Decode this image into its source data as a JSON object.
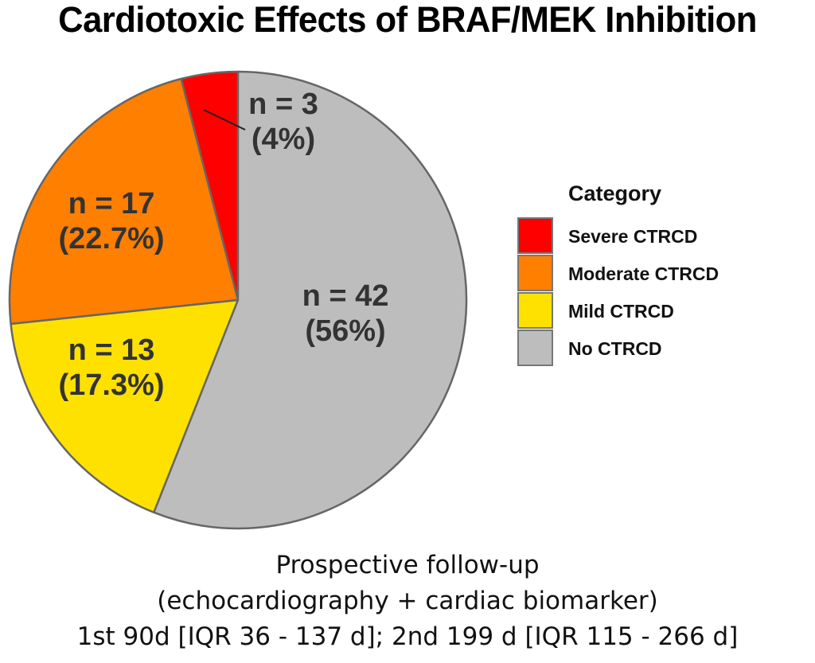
{
  "chart_data": {
    "type": "pie",
    "title": "Cardiotoxic Effects of BRAF/MEK Inhibition",
    "direction": "counter-clockwise from top",
    "slices": [
      {
        "key": "severe",
        "label": "Severe CTRCD",
        "n": 3,
        "percent": 4.0,
        "n_text": "n = 3",
        "pct_text": "(4%)",
        "color": "#ff0000"
      },
      {
        "key": "moderate",
        "label": "Moderate CTRCD",
        "n": 17,
        "percent": 22.7,
        "n_text": "n = 17",
        "pct_text": "(22.7%)",
        "color": "#ff7f00"
      },
      {
        "key": "mild",
        "label": "Mild CTRCD",
        "n": 13,
        "percent": 17.3,
        "n_text": "n = 13",
        "pct_text": "(17.3%)",
        "color": "#ffe100"
      },
      {
        "key": "none",
        "label": "No CTRCD",
        "n": 42,
        "percent": 56.0,
        "n_text": "n = 42",
        "pct_text": "(56%)",
        "color": "#bdbdbd"
      }
    ],
    "legend": {
      "title": "Category",
      "placement": "right",
      "entries": [
        "Severe CTRCD",
        "Moderate CTRCD",
        "Mild CTRCD",
        "No CTRCD"
      ]
    },
    "slice_border_color": "#666666",
    "label_color": "#333333"
  },
  "caption": {
    "lines": [
      "Prospective follow-up",
      "(echocardiography + cardiac biomarker)",
      "1st 90d [IQR 36 - 137 d]; 2nd 199 d [IQR 115 - 266 d]"
    ]
  }
}
